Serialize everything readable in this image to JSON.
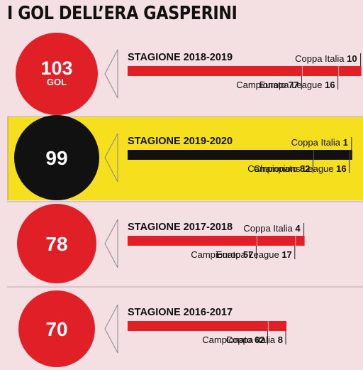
{
  "title": "I GOL DELL’ERA GASPERINI",
  "colors": {
    "red": "#e11f26",
    "black": "#111111",
    "highlight": "#f6df1d",
    "background": "#f4dfe3",
    "divider": "#b9a9ad"
  },
  "chart_data": {
    "type": "bar",
    "orientation": "horizontal",
    "stacked": true,
    "title": "I GOL DELL’ERA GASPERINI",
    "seasons": [
      {
        "label": "STAGIONE 2018-2019",
        "total": 103,
        "total_unit": "GOL",
        "highlighted": false,
        "segments": [
          {
            "name": "Campionato",
            "value": 77,
            "label_pos": "below"
          },
          {
            "name": "Europa League",
            "value": 16,
            "label_pos": "below"
          },
          {
            "name": "Coppa Italia",
            "value": 10,
            "label_pos": "above"
          }
        ]
      },
      {
        "label": "STAGIONE 2019-2020",
        "total": 99,
        "total_unit": "",
        "highlighted": true,
        "segments": [
          {
            "name": "Campionato",
            "value": 82,
            "label_pos": "below"
          },
          {
            "name": "Champions League",
            "value": 16,
            "label_pos": "below"
          },
          {
            "name": "Coppa Italia",
            "value": 1,
            "label_pos": "above"
          }
        ]
      },
      {
        "label": "STAGIONE 2017-2018",
        "total": 78,
        "total_unit": "",
        "highlighted": false,
        "segments": [
          {
            "name": "Campionato",
            "value": 57,
            "label_pos": "below"
          },
          {
            "name": "Europa League",
            "value": 17,
            "label_pos": "below"
          },
          {
            "name": "Coppa Italia",
            "value": 4,
            "label_pos": "above"
          }
        ]
      },
      {
        "label": "STAGIONE 2016-2017",
        "total": 70,
        "total_unit": "",
        "highlighted": false,
        "segments": [
          {
            "name": "Campionato",
            "value": 62,
            "label_pos": "below"
          },
          {
            "name": "Coppa Italia",
            "value": 8,
            "label_pos": "below"
          }
        ]
      }
    ]
  }
}
